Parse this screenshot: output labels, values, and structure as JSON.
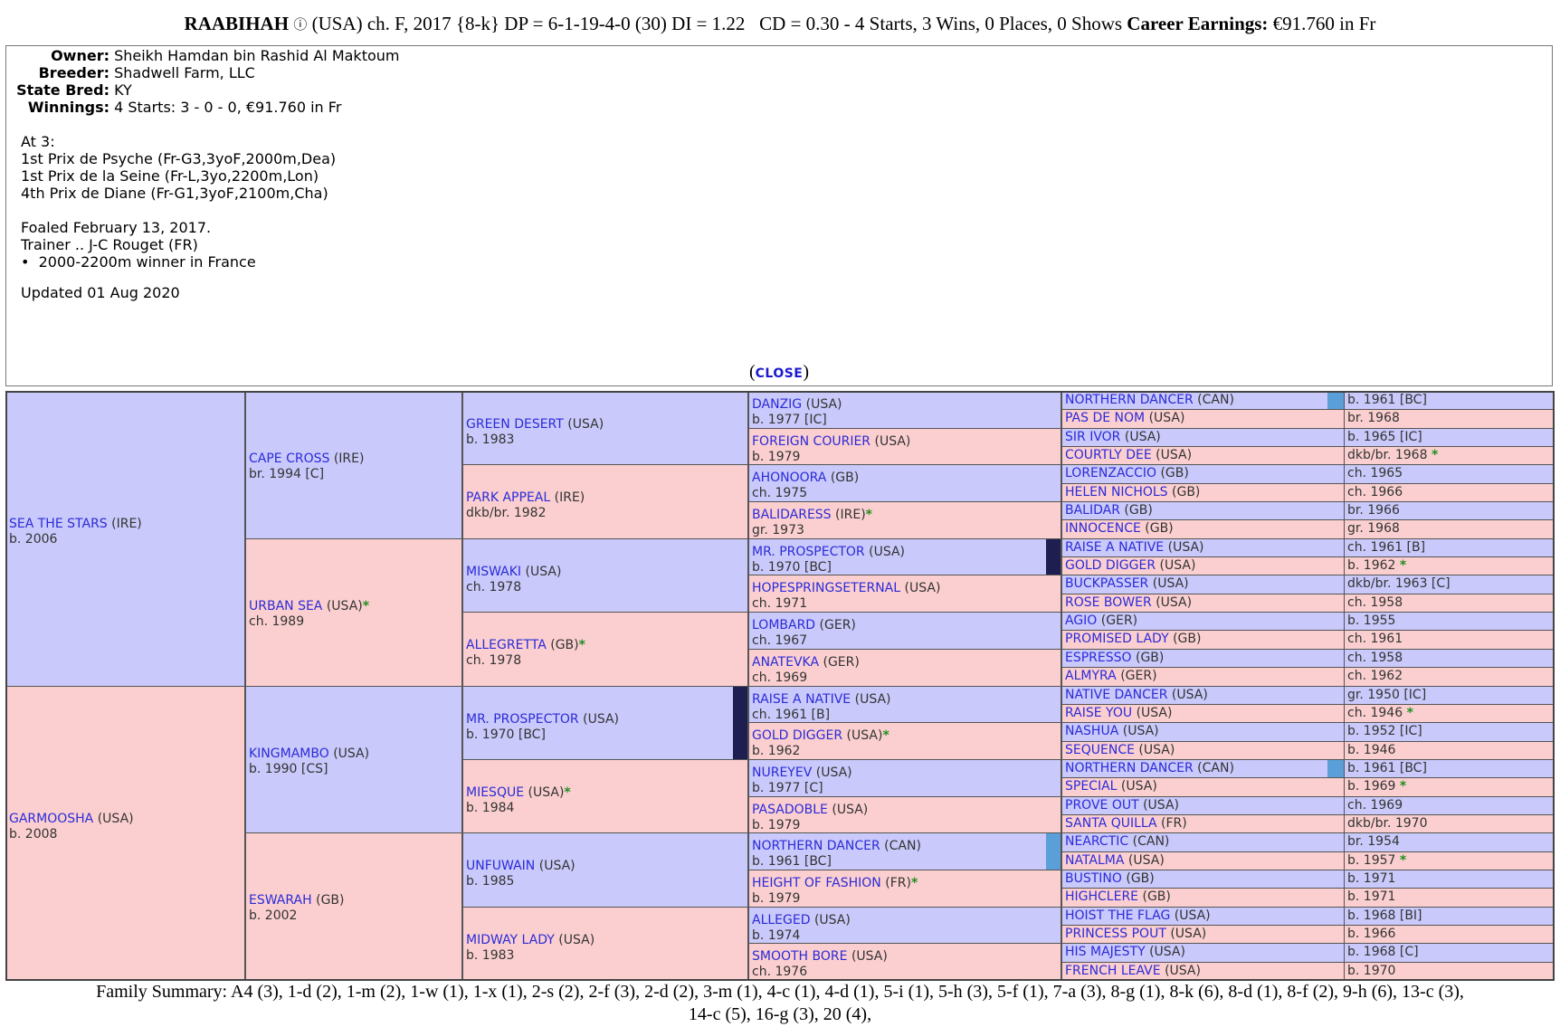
{
  "title": {
    "name": "RAABIHAH",
    "icon": "info-circle-icon",
    "icon_glyph": "ⓘ",
    "rest": "(USA) ch. F, 2017 {8-k} DP = 6-1-19-4-0 (30) DI = 1.22   CD = 0.30 - 4 Starts, 3 Wins, 0 Places, 0 Shows",
    "earnings_label": "Career Earnings:",
    "earnings_value": "€91.760 in Fr"
  },
  "info": {
    "rows": [
      {
        "label": "Owner",
        "value": "Sheikh Hamdan bin Rashid Al Maktoum"
      },
      {
        "label": "Breeder",
        "value": "Shadwell Farm, LLC"
      },
      {
        "label": "State Bred",
        "value": "KY"
      },
      {
        "label": "Winnings",
        "value": "4 Starts: 3 - 0 - 0, €91.760 in Fr"
      }
    ],
    "at3": "At 3:",
    "race1": "1st Prix de Psyche (Fr-G3,3yoF,2000m,Dea)",
    "race2": "1st Prix de la Seine (Fr-L,3yo,2200m,Lon)",
    "race3": "4th Prix de Diane (Fr-G1,3yoF,2100m,Cha)",
    "foaled": "Foaled February 13, 2017.",
    "trainer": "Trainer .. J-C Rouget (FR)",
    "bullet": "2000-2200m winner in France",
    "updated": "Updated 01 Aug 2020",
    "close_open": "(",
    "close_label": "CLOSE",
    "close_close": ")"
  },
  "pedigree": {
    "g1": [
      {
        "name": "SEA THE STARS",
        "country": "(IRE)",
        "year": "b. 2006",
        "star": false,
        "sex": "m"
      },
      {
        "name": "GARMOOSHA",
        "country": "(USA)",
        "year": "b. 2008",
        "star": false,
        "sex": "f"
      }
    ],
    "g2": [
      {
        "name": "CAPE CROSS",
        "country": "(IRE)",
        "year": "br. 1994 [C]",
        "star": false,
        "sex": "m"
      },
      {
        "name": "URBAN SEA",
        "country": "(USA)",
        "year": "ch. 1989",
        "star": true,
        "sex": "f"
      },
      {
        "name": "KINGMAMBO",
        "country": "(USA)",
        "year": "b. 1990 [CS]",
        "star": false,
        "sex": "m"
      },
      {
        "name": "ESWARAH",
        "country": "(GB)",
        "year": "b. 2002",
        "star": false,
        "sex": "f"
      }
    ],
    "g3": [
      {
        "name": "GREEN DESERT",
        "country": "(USA)",
        "year": "b. 1983",
        "star": false,
        "sex": "m"
      },
      {
        "name": "PARK APPEAL",
        "country": "(IRE)",
        "year": "dkb/br. 1982",
        "star": false,
        "sex": "f"
      },
      {
        "name": "MISWAKI",
        "country": "(USA)",
        "year": "ch. 1978",
        "star": false,
        "sex": "m"
      },
      {
        "name": "ALLEGRETTA",
        "country": "(GB)",
        "year": "ch. 1978",
        "star": true,
        "sex": "f"
      },
      {
        "name": "MR. PROSPECTOR",
        "country": "(USA)",
        "year": "b. 1970 [BC]",
        "star": false,
        "sex": "m",
        "bar": "#1e1e50"
      },
      {
        "name": "MIESQUE",
        "country": "(USA)",
        "year": "b. 1984",
        "star": true,
        "sex": "f"
      },
      {
        "name": "UNFUWAIN",
        "country": "(USA)",
        "year": "b. 1985",
        "star": false,
        "sex": "m"
      },
      {
        "name": "MIDWAY LADY",
        "country": "(USA)",
        "year": "b. 1983",
        "star": false,
        "sex": "f"
      }
    ],
    "g4": [
      {
        "name": "DANZIG",
        "country": "(USA)",
        "year": "b. 1977 [IC]",
        "star": false,
        "sex": "m"
      },
      {
        "name": "FOREIGN COURIER",
        "country": "(USA)",
        "year": "b. 1979",
        "star": false,
        "sex": "f"
      },
      {
        "name": "AHONOORA",
        "country": "(GB)",
        "year": "ch. 1975",
        "star": false,
        "sex": "m"
      },
      {
        "name": "BALIDARESS",
        "country": "(IRE)",
        "year": "gr. 1973",
        "star": true,
        "sex": "f"
      },
      {
        "name": "MR. PROSPECTOR",
        "country": "(USA)",
        "year": "b. 1970 [BC]",
        "star": false,
        "sex": "m",
        "bar": "#1e1e50"
      },
      {
        "name": "HOPESPRINGSETERNAL",
        "country": "(USA)",
        "year": "ch. 1971",
        "star": false,
        "sex": "f"
      },
      {
        "name": "LOMBARD",
        "country": "(GER)",
        "year": "ch. 1967",
        "star": false,
        "sex": "m"
      },
      {
        "name": "ANATEVKA",
        "country": "(GER)",
        "year": "ch. 1969",
        "star": false,
        "sex": "f"
      },
      {
        "name": "RAISE A NATIVE",
        "country": "(USA)",
        "year": "ch. 1961 [B]",
        "star": false,
        "sex": "m"
      },
      {
        "name": "GOLD DIGGER",
        "country": "(USA)",
        "year": "b. 1962",
        "star": true,
        "sex": "f"
      },
      {
        "name": "NUREYEV",
        "country": "(USA)",
        "year": "b. 1977 [C]",
        "star": false,
        "sex": "m"
      },
      {
        "name": "PASADOBLE",
        "country": "(USA)",
        "year": "b. 1979",
        "star": false,
        "sex": "f"
      },
      {
        "name": "NORTHERN DANCER",
        "country": "(CAN)",
        "year": "b. 1961 [BC]",
        "star": false,
        "sex": "m",
        "bar": "#5a9fd8"
      },
      {
        "name": "HEIGHT OF FASHION",
        "country": "(FR)",
        "year": "b. 1979",
        "star": true,
        "sex": "f"
      },
      {
        "name": "ALLEGED",
        "country": "(USA)",
        "year": "b. 1974",
        "star": false,
        "sex": "m"
      },
      {
        "name": "SMOOTH BORE",
        "country": "(USA)",
        "year": "ch. 1976",
        "star": false,
        "sex": "f"
      }
    ],
    "g5": [
      {
        "name": "NORTHERN DANCER",
        "country": "(CAN)",
        "year": "b. 1961 [BC]",
        "star": false,
        "sex": "m",
        "bar": "#5a9fd8"
      },
      {
        "name": "PAS DE NOM",
        "country": "(USA)",
        "year": "br. 1968",
        "star": false,
        "sex": "f"
      },
      {
        "name": "SIR IVOR",
        "country": "(USA)",
        "year": "b. 1965 [IC]",
        "star": false,
        "sex": "m"
      },
      {
        "name": "COURTLY DEE",
        "country": "(USA)",
        "year": "dkb/br. 1968",
        "star": true,
        "sex": "f"
      },
      {
        "name": "LORENZACCIO",
        "country": "(GB)",
        "year": "ch. 1965",
        "star": false,
        "sex": "m"
      },
      {
        "name": "HELEN NICHOLS",
        "country": "(GB)",
        "year": "ch. 1966",
        "star": false,
        "sex": "f"
      },
      {
        "name": "BALIDAR",
        "country": "(GB)",
        "year": "br. 1966",
        "star": false,
        "sex": "m"
      },
      {
        "name": "INNOCENCE",
        "country": "(GB)",
        "year": "gr. 1968",
        "star": false,
        "sex": "f"
      },
      {
        "name": "RAISE A NATIVE",
        "country": "(USA)",
        "year": "ch. 1961 [B]",
        "star": false,
        "sex": "m"
      },
      {
        "name": "GOLD DIGGER",
        "country": "(USA)",
        "year": "b. 1962",
        "star": true,
        "sex": "f"
      },
      {
        "name": "BUCKPASSER",
        "country": "(USA)",
        "year": "dkb/br. 1963 [C]",
        "star": false,
        "sex": "m"
      },
      {
        "name": "ROSE BOWER",
        "country": "(USA)",
        "year": "ch. 1958",
        "star": false,
        "sex": "f"
      },
      {
        "name": "AGIO",
        "country": "(GER)",
        "year": "b. 1955",
        "star": false,
        "sex": "m"
      },
      {
        "name": "PROMISED LADY",
        "country": "(GB)",
        "year": "ch. 1961",
        "star": false,
        "sex": "f"
      },
      {
        "name": "ESPRESSO",
        "country": "(GB)",
        "year": "ch. 1958",
        "star": false,
        "sex": "m"
      },
      {
        "name": "ALMYRA",
        "country": "(GER)",
        "year": "ch. 1962",
        "star": false,
        "sex": "f"
      },
      {
        "name": "NATIVE DANCER",
        "country": "(USA)",
        "year": "gr. 1950 [IC]",
        "star": false,
        "sex": "m"
      },
      {
        "name": "RAISE YOU",
        "country": "(USA)",
        "year": "ch. 1946",
        "star": true,
        "sex": "f"
      },
      {
        "name": "NASHUA",
        "country": "(USA)",
        "year": "b. 1952 [IC]",
        "star": false,
        "sex": "m"
      },
      {
        "name": "SEQUENCE",
        "country": "(USA)",
        "year": "b. 1946",
        "star": false,
        "sex": "f"
      },
      {
        "name": "NORTHERN DANCER",
        "country": "(CAN)",
        "year": "b. 1961 [BC]",
        "star": false,
        "sex": "m",
        "bar": "#5a9fd8"
      },
      {
        "name": "SPECIAL",
        "country": "(USA)",
        "year": "b. 1969",
        "star": true,
        "sex": "f"
      },
      {
        "name": "PROVE OUT",
        "country": "(USA)",
        "year": "ch. 1969",
        "star": false,
        "sex": "m"
      },
      {
        "name": "SANTA QUILLA",
        "country": "(FR)",
        "year": "dkb/br. 1970",
        "star": false,
        "sex": "f"
      },
      {
        "name": "NEARCTIC",
        "country": "(CAN)",
        "year": "br. 1954",
        "star": false,
        "sex": "m"
      },
      {
        "name": "NATALMA",
        "country": "(USA)",
        "year": "b. 1957",
        "star": true,
        "sex": "f"
      },
      {
        "name": "BUSTINO",
        "country": "(GB)",
        "year": "b. 1971",
        "star": false,
        "sex": "m"
      },
      {
        "name": "HIGHCLERE",
        "country": "(GB)",
        "year": "b. 1971",
        "star": false,
        "sex": "f"
      },
      {
        "name": "HOIST THE FLAG",
        "country": "(USA)",
        "year": "b. 1968 [BI]",
        "star": false,
        "sex": "m"
      },
      {
        "name": "PRINCESS POUT",
        "country": "(USA)",
        "year": "b. 1966",
        "star": false,
        "sex": "f"
      },
      {
        "name": "HIS MAJESTY",
        "country": "(USA)",
        "year": "b. 1968 [C]",
        "star": false,
        "sex": "m"
      },
      {
        "name": "FRENCH LEAVE",
        "country": "(USA)",
        "year": "b. 1970",
        "star": false,
        "sex": "f"
      }
    ]
  },
  "family_summary": {
    "line1": "Family Summary: A4 (3), 1-d (2), 1-m (2), 1-w (1), 1-x (1), 2-s (2), 2-f (3), 2-d (2), 3-m (1), 4-c (1), 4-d (1), 5-i (1), 5-h (3), 5-f (1), 7-a (3), 8-g (1), 8-k (6), 8-d (1), 8-f (2), 9-h (6), 13-c (3),",
    "line2": "14-c (5), 16-g (3), 20 (4),"
  },
  "colors": {
    "male": "#c9c9fb",
    "female": "#fbcfcf",
    "link": "#2b2bd9",
    "star": "#1f8f1f"
  }
}
